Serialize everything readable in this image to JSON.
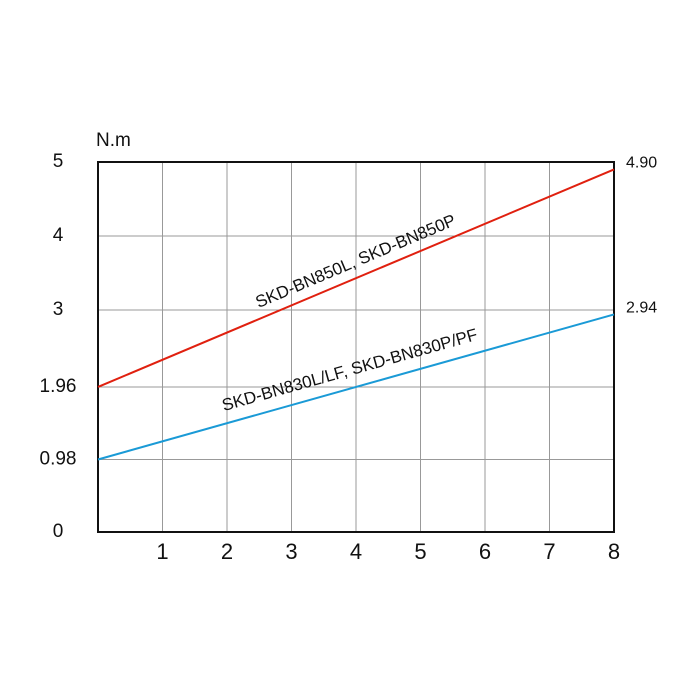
{
  "chart_data": {
    "type": "line",
    "y_label": "N.m",
    "x": [
      0,
      8
    ],
    "series": [
      {
        "name": "SKD-BN850L, SKD-BN850P",
        "color": "#e0200f",
        "values": [
          1.96,
          4.9
        ],
        "value_labels": [
          null,
          "4.90"
        ]
      },
      {
        "name": "SKD-BN830L/LF, SKD-BN830P/PF",
        "color": "#1a9ad6",
        "values": [
          0.98,
          2.94
        ],
        "value_labels": [
          null,
          "2.94"
        ]
      }
    ],
    "xlim": [
      0,
      8
    ],
    "xticks": [
      1,
      2,
      3,
      4,
      5,
      6,
      7,
      8
    ],
    "ylim": [
      0,
      5
    ],
    "yticks": [
      0,
      0.98,
      1.96,
      3,
      4,
      5
    ],
    "grid": true
  }
}
